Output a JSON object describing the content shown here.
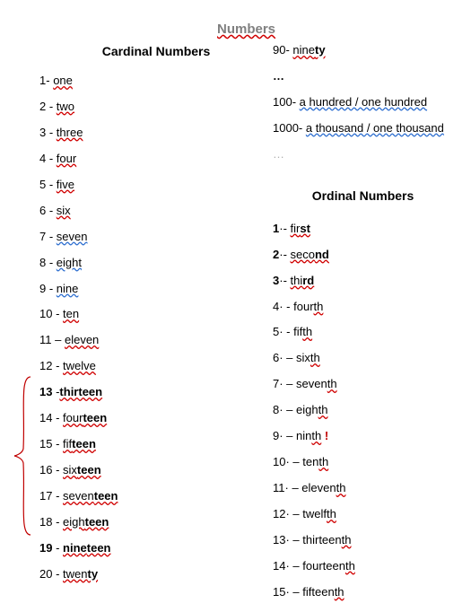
{
  "title": "Numbers",
  "headings": {
    "cardinal": "Cardinal Numbers",
    "ordinal": "Ordinal Numbers"
  },
  "cardinal_left": [
    {
      "n": "1",
      "sep": "- ",
      "pre": "",
      "mid": "one",
      "suf": "",
      "bold": false,
      "u": "wavy"
    },
    {
      "n": "2",
      "sep": " - ",
      "pre": "",
      "mid": "two",
      "suf": "",
      "bold": false,
      "u": "wavy"
    },
    {
      "n": "3",
      "sep": " - ",
      "pre": "",
      "mid": "three",
      "suf": "",
      "bold": false,
      "u": "wavy"
    },
    {
      "n": "4",
      "sep": " - ",
      "pre": "",
      "mid": "four",
      "suf": "",
      "bold": false,
      "u": "wavy"
    },
    {
      "n": "5",
      "sep": " - ",
      "pre": "",
      "mid": "five",
      "suf": "",
      "bold": false,
      "u": "wavy"
    },
    {
      "n": "6",
      "sep": " - ",
      "pre": "",
      "mid": "six",
      "suf": "",
      "bold": false,
      "u": "wavy"
    },
    {
      "n": "7",
      "sep": " - ",
      "pre": "",
      "mid": "seven",
      "suf": "",
      "bold": false,
      "u": "blue"
    },
    {
      "n": "8",
      "sep": " - ",
      "pre": "",
      "mid": "eight",
      "suf": "",
      "bold": false,
      "u": "blue"
    },
    {
      "n": "9",
      "sep": " - ",
      "pre": "",
      "mid": "nine",
      "suf": "",
      "bold": false,
      "u": "blue"
    },
    {
      "n": "10",
      "sep": " - ",
      "pre": "",
      "mid": "ten",
      "suf": "",
      "bold": false,
      "u": "wavy"
    },
    {
      "n": "11",
      "sep": " – ",
      "pre": "",
      "mid": "eleven",
      "suf": "",
      "bold": false,
      "u": "wavy"
    },
    {
      "n": "12",
      "sep": " - ",
      "pre": "",
      "mid": "twelve",
      "suf": "",
      "bold": false,
      "u": "wavy"
    },
    {
      "n": "13",
      "sep": " -",
      "pre": "thir",
      "mid": "teen",
      "suf": "",
      "bold": true,
      "u": "wavy",
      "boldMid": true,
      "nbold": true
    },
    {
      "n": "14",
      "sep": " - ",
      "pre": "four",
      "mid": "teen",
      "suf": "",
      "bold": false,
      "u": "wavy",
      "boldMid": true
    },
    {
      "n": "15",
      "sep": " - ",
      "pre": "fif",
      "mid": "teen",
      "suf": "",
      "bold": false,
      "u": "wavy",
      "boldMid": true
    },
    {
      "n": "16",
      "sep": " - ",
      "pre": "six",
      "mid": "teen",
      "suf": "",
      "bold": false,
      "u": "wavy",
      "boldMid": true
    },
    {
      "n": "17",
      "sep": " - ",
      "pre": "seven",
      "mid": "teen",
      "suf": "",
      "bold": false,
      "u": "wavy",
      "boldMid": true
    },
    {
      "n": "18",
      "sep": " - ",
      "pre": "eigh",
      "mid": "teen",
      "suf": "",
      "bold": false,
      "u": "wavy",
      "boldMid": true
    },
    {
      "n": "19",
      "sep": " - ",
      "pre": "nine",
      "mid": "teen",
      "suf": "",
      "bold": true,
      "u": "wavy",
      "boldMid": true,
      "nbold": true
    },
    {
      "n": "20",
      "sep": " - ",
      "pre": "twen",
      "mid": "ty",
      "suf": "",
      "bold": false,
      "u": "wavy",
      "boldMid": true
    }
  ],
  "cardinal_right_top": [
    {
      "n": "90",
      "sep": "- ",
      "pre": "nine",
      "mid": "ty",
      "suf": "",
      "u": "wavy",
      "boldMid": true
    },
    {
      "raw": "…",
      "cls": "ellipsis b"
    },
    {
      "n": "100",
      "sep": "- ",
      "pre": "",
      "mid": "a hundred / one hundred",
      "suf": "",
      "u": "blue"
    },
    {
      "n": "1000",
      "sep": "- ",
      "pre": "",
      "mid": "a thousand / one thousand",
      "suf": "",
      "u": "blue"
    },
    {
      "raw": "…",
      "cls": "light-ellipsis"
    }
  ],
  "ordinal": [
    {
      "n": "1",
      "sep": "·- ",
      "pre": "fir",
      "mid": "st",
      "u": "wavy",
      "boldMid": true,
      "nbold": true
    },
    {
      "n": "2",
      "sep": "·- ",
      "pre": "seco",
      "mid": "nd",
      "u": "wavy",
      "boldMid": true,
      "nbold": true
    },
    {
      "n": "3",
      "sep": "·- ",
      "pre": "thi",
      "mid": "rd",
      "u": "wavy",
      "boldMid": true,
      "nbold": true
    },
    {
      "n": "4",
      "sep": "· - ",
      "pre": "four",
      "mid": "th",
      "u": "wavy",
      "uMidOnly": true
    },
    {
      "n": "5",
      "sep": "· - ",
      "pre": "fif",
      "mid": "th",
      "u": "wavy",
      "uMidOnly": true
    },
    {
      "n": "6",
      "sep": "· – ",
      "pre": "six",
      "mid": "th",
      "u": "wavy",
      "uMidOnly": true
    },
    {
      "n": "7",
      "sep": "· – ",
      "pre": "seven",
      "mid": "th",
      "u": "wavy",
      "uMidOnly": true
    },
    {
      "n": "8",
      "sep": "· – ",
      "pre": "eigh",
      "mid": "th",
      "u": "wavy",
      "uMidOnly": true
    },
    {
      "n": "9",
      "sep": "· – ",
      "pre": "nin",
      "mid": "th",
      "u": "wavy",
      "uMidOnly": true,
      "suf": " !",
      "sufcls": "excl"
    },
    {
      "n": "10",
      "sep": "· – ",
      "pre": "ten",
      "mid": "th",
      "u": "wavy",
      "uMidOnly": true
    },
    {
      "n": "11",
      "sep": "· – ",
      "pre": "eleven",
      "mid": "th",
      "u": "wavy",
      "uMidOnly": true
    },
    {
      "n": "12",
      "sep": "· – ",
      "pre": "twelf",
      "mid": "th",
      "u": "wavy",
      "uMidOnly": true
    },
    {
      "n": "13",
      "sep": "· – ",
      "pre": "thirteen",
      "mid": "th",
      "u": "wavy",
      "uMidOnly": true
    },
    {
      "n": "14",
      "sep": "· – ",
      "pre": "fourteen",
      "mid": "th",
      "u": "wavy",
      "uMidOnly": true
    },
    {
      "n": "15",
      "sep": "· – ",
      "pre": "fifteen",
      "mid": "th",
      "u": "wavy",
      "uMidOnly": true
    }
  ],
  "colors": {
    "wavy": "#d00000",
    "blue": "#3070d0",
    "title": "#808080",
    "brace": "#c00000"
  }
}
